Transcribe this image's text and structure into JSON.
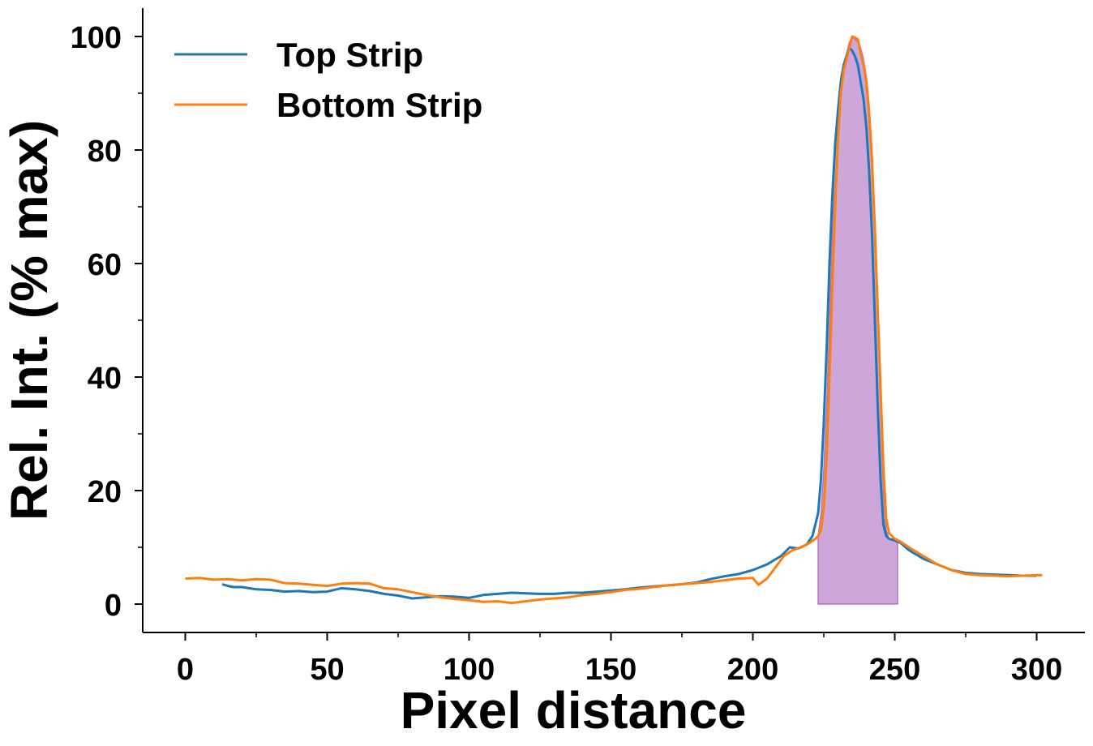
{
  "chart_data": {
    "type": "line",
    "xlabel": "Pixel distance",
    "ylabel": "Rel. Int. (% max)",
    "xlim": [
      -15,
      317
    ],
    "ylim": [
      -5,
      105
    ],
    "x_ticks": [
      0,
      50,
      100,
      150,
      200,
      250,
      300
    ],
    "x_minor_ticks": [
      25,
      75,
      125,
      175,
      225,
      275
    ],
    "y_ticks": [
      0,
      20,
      40,
      60,
      80,
      100
    ],
    "y_minor_ticks": [
      10,
      30,
      50,
      70,
      90
    ],
    "grid": false,
    "legend_position": "top-left",
    "shaded_region": {
      "x": [
        223,
        224,
        225,
        226,
        227,
        228,
        229,
        230,
        231,
        232,
        233,
        234,
        235,
        236,
        237,
        238,
        239,
        240,
        241,
        242,
        243,
        244,
        245,
        246,
        247,
        248,
        249,
        250,
        251
      ],
      "y": [
        12,
        16,
        24,
        35,
        50,
        66,
        80,
        88,
        93,
        95,
        97,
        99,
        100,
        99.5,
        99,
        98,
        96,
        93,
        88,
        80,
        68,
        52,
        35,
        20,
        13,
        11.5,
        11.5,
        11.5,
        11
      ],
      "color": "#9b4db5"
    },
    "series": [
      {
        "name": "Top Strip",
        "color": "#1f77b4",
        "x": [
          13,
          15,
          17,
          20,
          25,
          30,
          35,
          40,
          45,
          50,
          55,
          60,
          65,
          70,
          75,
          80,
          85,
          90,
          95,
          100,
          105,
          110,
          115,
          120,
          125,
          130,
          135,
          140,
          145,
          150,
          155,
          160,
          165,
          170,
          175,
          180,
          185,
          190,
          195,
          200,
          205,
          210,
          213,
          216,
          219,
          221,
          223,
          224,
          225,
          226,
          227,
          228,
          229,
          230,
          231,
          232,
          233,
          234,
          235,
          236,
          237,
          238,
          239,
          240,
          241,
          242,
          243,
          244,
          245,
          246,
          247,
          248,
          250,
          252,
          255,
          260,
          265,
          270,
          275,
          280,
          285,
          290,
          295,
          300
        ],
        "y": [
          3.5,
          3.2,
          3.0,
          3.0,
          2.6,
          2.5,
          2.2,
          2.3,
          2.1,
          2.2,
          2.8,
          2.6,
          2.3,
          1.8,
          1.5,
          1.0,
          1.2,
          1.4,
          1.3,
          1.1,
          1.6,
          1.8,
          2.0,
          1.9,
          1.8,
          1.8,
          2.0,
          2.0,
          2.2,
          2.4,
          2.6,
          2.9,
          3.1,
          3.3,
          3.5,
          3.8,
          4.4,
          4.9,
          5.3,
          6.0,
          7.0,
          8.5,
          10.0,
          9.8,
          10.5,
          12.0,
          16.0,
          22.0,
          32.0,
          45.0,
          60.0,
          72.0,
          81.0,
          87.0,
          92.0,
          95.0,
          96.5,
          98.0,
          97.5,
          96.5,
          95.0,
          92.0,
          89.0,
          84.0,
          76.0,
          65.0,
          50.0,
          35.0,
          22.0,
          14.0,
          12.0,
          11.5,
          11.2,
          10.8,
          9.5,
          8.0,
          7.0,
          6.0,
          5.5,
          5.3,
          5.2,
          5.1,
          5.0,
          5.0
        ]
      },
      {
        "name": "Bottom Strip",
        "color": "#ff7f0e",
        "x": [
          0,
          5,
          10,
          15,
          20,
          25,
          30,
          35,
          40,
          45,
          50,
          55,
          60,
          65,
          70,
          75,
          80,
          85,
          90,
          95,
          100,
          105,
          110,
          115,
          120,
          125,
          130,
          135,
          140,
          145,
          150,
          155,
          160,
          165,
          170,
          175,
          180,
          185,
          190,
          195,
          200,
          202,
          205,
          208,
          211,
          214,
          217,
          220,
          222,
          223,
          224,
          225,
          226,
          227,
          228,
          229,
          230,
          231,
          232,
          233,
          234,
          235,
          236,
          237,
          238,
          239,
          240,
          241,
          242,
          243,
          244,
          245,
          246,
          247,
          248,
          250,
          252,
          255,
          260,
          265,
          270,
          275,
          280,
          285,
          290,
          295,
          300,
          302
        ],
        "y": [
          4.5,
          4.6,
          4.3,
          4.4,
          4.2,
          4.4,
          4.3,
          3.7,
          3.6,
          3.4,
          3.2,
          3.6,
          3.7,
          3.6,
          2.8,
          2.6,
          2.1,
          1.6,
          1.2,
          0.9,
          0.7,
          0.4,
          0.5,
          0.2,
          0.5,
          0.8,
          1.0,
          1.2,
          1.6,
          1.8,
          2.1,
          2.5,
          2.7,
          3.0,
          3.3,
          3.5,
          3.7,
          3.9,
          4.2,
          4.5,
          4.6,
          3.4,
          4.5,
          6.5,
          8.5,
          9.5,
          10.0,
          10.8,
          11.5,
          12.0,
          13.0,
          17.0,
          26.0,
          40.0,
          56.0,
          70.0,
          82.0,
          90.0,
          94.0,
          96.0,
          98.0,
          100.0,
          99.8,
          99.5,
          97.0,
          95.0,
          92.0,
          86.0,
          78.0,
          66.0,
          52.0,
          38.0,
          24.0,
          15.0,
          12.5,
          11.5,
          11.0,
          10.0,
          8.5,
          7.0,
          6.0,
          5.3,
          5.1,
          5.0,
          4.9,
          5.0,
          5.1,
          5.1
        ]
      }
    ]
  }
}
